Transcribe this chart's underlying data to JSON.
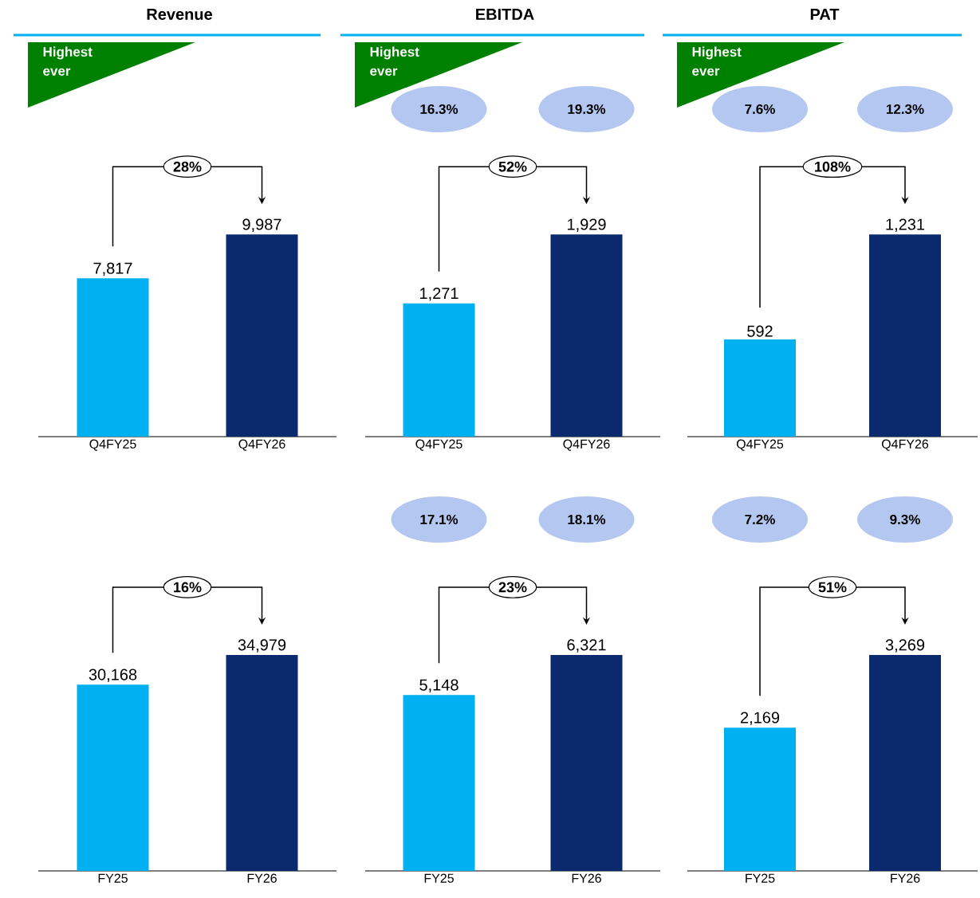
{
  "chart_data": [
    {
      "type": "bar",
      "title": "Revenue",
      "categories": [
        "Q4FY25",
        "Q4FY26"
      ],
      "values": [
        7817,
        9987
      ],
      "colors": [
        "#00b0f0",
        "#0b2a6e"
      ],
      "value_labels": [
        "7,817",
        "9,987"
      ],
      "annotations": [
        "Highest ever",
        "28%"
      ]
    },
    {
      "type": "bar",
      "title": "EBITDA",
      "categories": [
        "Q4FY25",
        "Q4FY26"
      ],
      "values": [
        1271,
        1929
      ],
      "colors": [
        "#00b0f0",
        "#0b2a6e"
      ],
      "value_labels": [
        "1,271",
        "1,929"
      ],
      "annotations": [
        "Highest ever",
        "52%",
        "16.3%",
        "19.3%"
      ]
    },
    {
      "type": "bar",
      "title": "PAT",
      "categories": [
        "Q4FY25",
        "Q4FY26"
      ],
      "values": [
        592,
        1231
      ],
      "colors": [
        "#00b0f0",
        "#0b2a6e"
      ],
      "value_labels": [
        "592",
        "1,231"
      ],
      "annotations": [
        "Highest ever",
        "108%",
        "7.6%",
        "12.3%"
      ]
    },
    {
      "type": "bar",
      "categories": [
        "FY25",
        "FY26"
      ],
      "values": [
        30168,
        34979
      ],
      "colors": [
        "#00b0f0",
        "#0b2a6e"
      ],
      "value_labels": [
        "30,168",
        "34,979"
      ],
      "annotations": [
        "16%"
      ]
    },
    {
      "type": "bar",
      "categories": [
        "FY25",
        "FY26"
      ],
      "values": [
        5148,
        6321
      ],
      "colors": [
        "#00b0f0",
        "#0b2a6e"
      ],
      "value_labels": [
        "5,148",
        "6,321"
      ],
      "annotations": [
        "23%",
        "17.1%",
        "18.1%"
      ]
    },
    {
      "type": "bar",
      "categories": [
        "FY25",
        "FY26"
      ],
      "values": [
        2169,
        3269
      ],
      "colors": [
        "#00b0f0",
        "#0b2a6e"
      ],
      "value_labels": [
        "2,169",
        "3,269"
      ],
      "annotations": [
        "51%",
        "7.2%",
        "9.3%"
      ]
    }
  ]
}
